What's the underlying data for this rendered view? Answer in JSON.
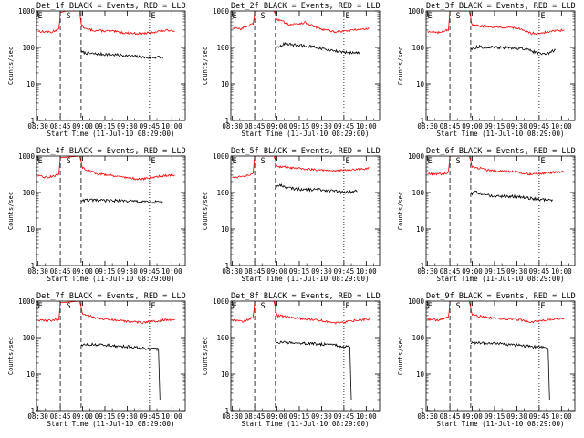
{
  "figure": {
    "panel_titles": [
      "Det_1f",
      "Det_2f",
      "Det_3f",
      "Det_4f",
      "Det_5f",
      "Det_6f",
      "Det_7f",
      "Det_8f",
      "Det_9f"
    ],
    "title_suffix": " BLACK = Events, RED = LLD",
    "ylabel": "Counts/sec",
    "xlabel": "Start Time (11-Jul-10 08:29:00)",
    "xtick_labels": [
      "08:30",
      "08:45",
      "09:00",
      "09:15",
      "09:30",
      "09:45",
      "10:00"
    ],
    "ytick_labels": [
      "1",
      "10",
      "100",
      "1000"
    ],
    "markers": {
      "eclipse": "E",
      "saa": "S"
    },
    "colors": {
      "events": "#000000",
      "lld": "#ff0000",
      "axes": "#000000"
    }
  },
  "chart_data": {
    "type": "line",
    "yscale": "log",
    "ylim": [
      1,
      1000
    ],
    "x_units": "minutes after 08:29:00",
    "xlim": [
      0,
      100
    ],
    "xticks": [
      1,
      16,
      31,
      46,
      61,
      76,
      91
    ],
    "vertical_lines": [
      {
        "x": 16,
        "style": "dashed"
      },
      {
        "x": 30,
        "style": "dashed"
      },
      {
        "x": 76,
        "style": "dotted"
      }
    ],
    "markers": [
      {
        "label": "E",
        "x": 1
      },
      {
        "label": "S",
        "x": 20
      },
      {
        "label": "E",
        "x": 77
      }
    ],
    "panels": [
      {
        "title": "Det_1f",
        "lld": [
          [
            1,
            280
          ],
          [
            5,
            270
          ],
          [
            10,
            260
          ],
          [
            13,
            300
          ],
          [
            15,
            310
          ],
          [
            16,
            900
          ],
          [
            20,
            1000
          ],
          [
            29,
            1000
          ],
          [
            30,
            420
          ],
          [
            33,
            320
          ],
          [
            40,
            290
          ],
          [
            50,
            280
          ],
          [
            60,
            250
          ],
          [
            70,
            240
          ],
          [
            76,
            250
          ],
          [
            82,
            280
          ],
          [
            90,
            300
          ],
          [
            93,
            290
          ]
        ],
        "events": [
          [
            30,
            75
          ],
          [
            35,
            68
          ],
          [
            45,
            65
          ],
          [
            55,
            62
          ],
          [
            65,
            58
          ],
          [
            75,
            52
          ],
          [
            82,
            55
          ],
          [
            85,
            52
          ]
        ]
      },
      {
        "title": "Det_2f",
        "lld": [
          [
            1,
            350
          ],
          [
            6,
            320
          ],
          [
            12,
            400
          ],
          [
            15,
            430
          ],
          [
            16,
            1000
          ],
          [
            29,
            1000
          ],
          [
            31,
            600
          ],
          [
            40,
            420
          ],
          [
            50,
            480
          ],
          [
            60,
            320
          ],
          [
            70,
            270
          ],
          [
            76,
            280
          ],
          [
            85,
            310
          ],
          [
            93,
            330
          ]
        ],
        "events": [
          [
            30,
            90
          ],
          [
            35,
            125
          ],
          [
            45,
            115
          ],
          [
            55,
            105
          ],
          [
            65,
            85
          ],
          [
            75,
            75
          ],
          [
            82,
            72
          ],
          [
            87,
            68
          ]
        ]
      },
      {
        "title": "Det_3f",
        "lld": [
          [
            1,
            280
          ],
          [
            8,
            250
          ],
          [
            13,
            300
          ],
          [
            15,
            310
          ],
          [
            16,
            1000
          ],
          [
            29,
            1000
          ],
          [
            31,
            400
          ],
          [
            40,
            380
          ],
          [
            50,
            360
          ],
          [
            60,
            350
          ],
          [
            70,
            250
          ],
          [
            76,
            245
          ],
          [
            85,
            280
          ],
          [
            93,
            300
          ]
        ],
        "events": [
          [
            30,
            90
          ],
          [
            35,
            105
          ],
          [
            45,
            100
          ],
          [
            55,
            98
          ],
          [
            65,
            95
          ],
          [
            75,
            70
          ],
          [
            82,
            70
          ],
          [
            87,
            85
          ]
        ]
      },
      {
        "title": "Det_4f",
        "lld": [
          [
            1,
            280
          ],
          [
            8,
            260
          ],
          [
            13,
            300
          ],
          [
            15,
            310
          ],
          [
            16,
            900
          ],
          [
            29,
            1000
          ],
          [
            31,
            480
          ],
          [
            40,
            330
          ],
          [
            50,
            300
          ],
          [
            60,
            260
          ],
          [
            70,
            230
          ],
          [
            76,
            250
          ],
          [
            85,
            290
          ],
          [
            93,
            300
          ]
        ],
        "events": [
          [
            30,
            60
          ],
          [
            35,
            62
          ],
          [
            45,
            60
          ],
          [
            55,
            60
          ],
          [
            65,
            58
          ],
          [
            75,
            55
          ],
          [
            82,
            55
          ],
          [
            85,
            55
          ]
        ]
      },
      {
        "title": "Det_5f",
        "lld": [
          [
            1,
            260
          ],
          [
            8,
            280
          ],
          [
            13,
            320
          ],
          [
            15,
            350
          ],
          [
            16,
            1000
          ],
          [
            29,
            1000
          ],
          [
            31,
            520
          ],
          [
            40,
            470
          ],
          [
            50,
            440
          ],
          [
            60,
            420
          ],
          [
            70,
            400
          ],
          [
            76,
            410
          ],
          [
            85,
            430
          ],
          [
            93,
            460
          ]
        ],
        "events": [
          [
            30,
            140
          ],
          [
            33,
            160
          ],
          [
            40,
            130
          ],
          [
            50,
            120
          ],
          [
            60,
            120
          ],
          [
            70,
            110
          ],
          [
            76,
            100
          ],
          [
            85,
            110
          ]
        ]
      },
      {
        "title": "Det_6f",
        "lld": [
          [
            1,
            330
          ],
          [
            8,
            320
          ],
          [
            13,
            330
          ],
          [
            15,
            350
          ],
          [
            16,
            1000
          ],
          [
            29,
            1000
          ],
          [
            31,
            520
          ],
          [
            40,
            420
          ],
          [
            50,
            390
          ],
          [
            60,
            370
          ],
          [
            70,
            320
          ],
          [
            76,
            330
          ],
          [
            85,
            360
          ],
          [
            93,
            370
          ]
        ],
        "events": [
          [
            30,
            90
          ],
          [
            33,
            105
          ],
          [
            40,
            85
          ],
          [
            50,
            80
          ],
          [
            60,
            78
          ],
          [
            70,
            70
          ],
          [
            76,
            65
          ],
          [
            85,
            60
          ]
        ]
      },
      {
        "title": "Det_7f",
        "lld": [
          [
            1,
            300
          ],
          [
            8,
            290
          ],
          [
            13,
            310
          ],
          [
            15,
            320
          ],
          [
            16,
            900
          ],
          [
            29,
            1000
          ],
          [
            31,
            450
          ],
          [
            40,
            340
          ],
          [
            50,
            310
          ],
          [
            60,
            280
          ],
          [
            70,
            260
          ],
          [
            76,
            270
          ],
          [
            85,
            300
          ],
          [
            93,
            320
          ]
        ],
        "events": [
          [
            30,
            60
          ],
          [
            35,
            65
          ],
          [
            45,
            62
          ],
          [
            55,
            58
          ],
          [
            65,
            55
          ],
          [
            75,
            50
          ],
          [
            82,
            48
          ],
          [
            83,
            2
          ]
        ]
      },
      {
        "title": "Det_8f",
        "lld": [
          [
            1,
            310
          ],
          [
            8,
            280
          ],
          [
            13,
            330
          ],
          [
            15,
            350
          ],
          [
            16,
            1000
          ],
          [
            29,
            1000
          ],
          [
            31,
            400
          ],
          [
            40,
            360
          ],
          [
            50,
            320
          ],
          [
            60,
            300
          ],
          [
            70,
            250
          ],
          [
            76,
            265
          ],
          [
            85,
            300
          ],
          [
            93,
            320
          ]
        ],
        "events": [
          [
            30,
            70
          ],
          [
            35,
            75
          ],
          [
            45,
            70
          ],
          [
            55,
            68
          ],
          [
            65,
            64
          ],
          [
            75,
            58
          ],
          [
            80,
            55
          ],
          [
            81,
            2
          ]
        ]
      },
      {
        "title": "Det_9f",
        "lld": [
          [
            1,
            320
          ],
          [
            8,
            300
          ],
          [
            13,
            340
          ],
          [
            15,
            350
          ],
          [
            16,
            1000
          ],
          [
            29,
            1000
          ],
          [
            31,
            420
          ],
          [
            40,
            360
          ],
          [
            50,
            330
          ],
          [
            60,
            320
          ],
          [
            70,
            270
          ],
          [
            76,
            280
          ],
          [
            85,
            310
          ],
          [
            93,
            330
          ]
        ],
        "events": [
          [
            30,
            70
          ],
          [
            35,
            72
          ],
          [
            45,
            70
          ],
          [
            55,
            65
          ],
          [
            65,
            60
          ],
          [
            75,
            55
          ],
          [
            82,
            50
          ],
          [
            83,
            2
          ]
        ]
      }
    ]
  }
}
